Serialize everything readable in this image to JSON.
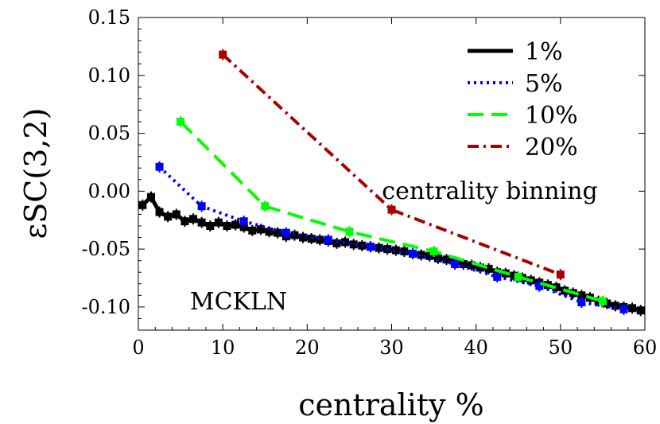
{
  "chart_data": {
    "type": "line",
    "xlabel": "centrality %",
    "ylabel": "εSC(3,2)",
    "xlim": [
      0,
      60
    ],
    "ylim": [
      -0.12,
      0.15
    ],
    "xticks": [
      0,
      10,
      20,
      30,
      40,
      50,
      60
    ],
    "xtick_labels": [
      "0",
      "10",
      "20",
      "30",
      "40",
      "50",
      "60"
    ],
    "yticks": [
      -0.1,
      -0.05,
      0.0,
      0.05,
      0.1,
      0.15
    ],
    "ytick_labels": [
      "-0.10",
      "-0.05",
      "0.00",
      "0.05",
      "0.10",
      "0.15"
    ],
    "grid": false,
    "legend_position": "top-right",
    "annotations": [
      "centrality binning",
      "MCKLN"
    ],
    "series": [
      {
        "name": "1%",
        "color": "#000000",
        "dash": "solid",
        "marker": "square",
        "x": [
          0.5,
          1.5,
          2.5,
          3.5,
          4.5,
          5.5,
          6.5,
          7.5,
          8.5,
          9.5,
          10.5,
          11.5,
          12.5,
          13.5,
          14.5,
          15.5,
          16.5,
          17.5,
          18.5,
          19.5,
          20.5,
          21.5,
          22.5,
          23.5,
          24.5,
          25.5,
          26.5,
          27.5,
          28.5,
          29.5,
          30.5,
          31.5,
          32.5,
          33.5,
          34.5,
          35.5,
          36.5,
          37.5,
          38.5,
          39.5,
          40.5,
          41.5,
          42.5,
          43.5,
          44.5,
          45.5,
          46.5,
          47.5,
          48.5,
          49.5,
          50.5,
          51.5,
          52.5,
          53.5,
          54.5,
          55.5,
          56.5,
          57.5,
          58.5,
          59.5
        ],
        "y": [
          -0.012,
          -0.005,
          -0.018,
          -0.022,
          -0.02,
          -0.026,
          -0.024,
          -0.027,
          -0.03,
          -0.027,
          -0.03,
          -0.029,
          -0.031,
          -0.034,
          -0.033,
          -0.035,
          -0.036,
          -0.039,
          -0.038,
          -0.04,
          -0.041,
          -0.042,
          -0.043,
          -0.045,
          -0.044,
          -0.046,
          -0.047,
          -0.048,
          -0.049,
          -0.05,
          -0.051,
          -0.052,
          -0.054,
          -0.055,
          -0.056,
          -0.058,
          -0.059,
          -0.061,
          -0.063,
          -0.064,
          -0.066,
          -0.067,
          -0.07,
          -0.071,
          -0.073,
          -0.075,
          -0.077,
          -0.079,
          -0.081,
          -0.083,
          -0.086,
          -0.088,
          -0.09,
          -0.092,
          -0.095,
          -0.097,
          -0.099,
          -0.1,
          -0.101,
          -0.103
        ]
      },
      {
        "name": "5%",
        "color": "#0000ff",
        "dash": "dotted",
        "marker": "square",
        "x": [
          2.5,
          7.5,
          12.5,
          17.5,
          22.5,
          27.5,
          32.5,
          37.5,
          42.5,
          47.5,
          52.5,
          57.5
        ],
        "y": [
          0.021,
          -0.013,
          -0.026,
          -0.036,
          -0.042,
          -0.048,
          -0.054,
          -0.063,
          -0.074,
          -0.082,
          -0.096,
          -0.102
        ]
      },
      {
        "name": "10%",
        "color": "#00ff00",
        "dash": "dashed",
        "marker": "square",
        "x": [
          5,
          15,
          25,
          35,
          45,
          55
        ],
        "y": [
          0.06,
          -0.013,
          -0.035,
          -0.052,
          -0.074,
          -0.095
        ]
      },
      {
        "name": "20%",
        "color": "#aa0000",
        "dash": "dashdot",
        "marker": "square",
        "x": [
          10,
          30,
          50
        ],
        "y": [
          0.118,
          -0.016,
          -0.072
        ]
      }
    ]
  }
}
